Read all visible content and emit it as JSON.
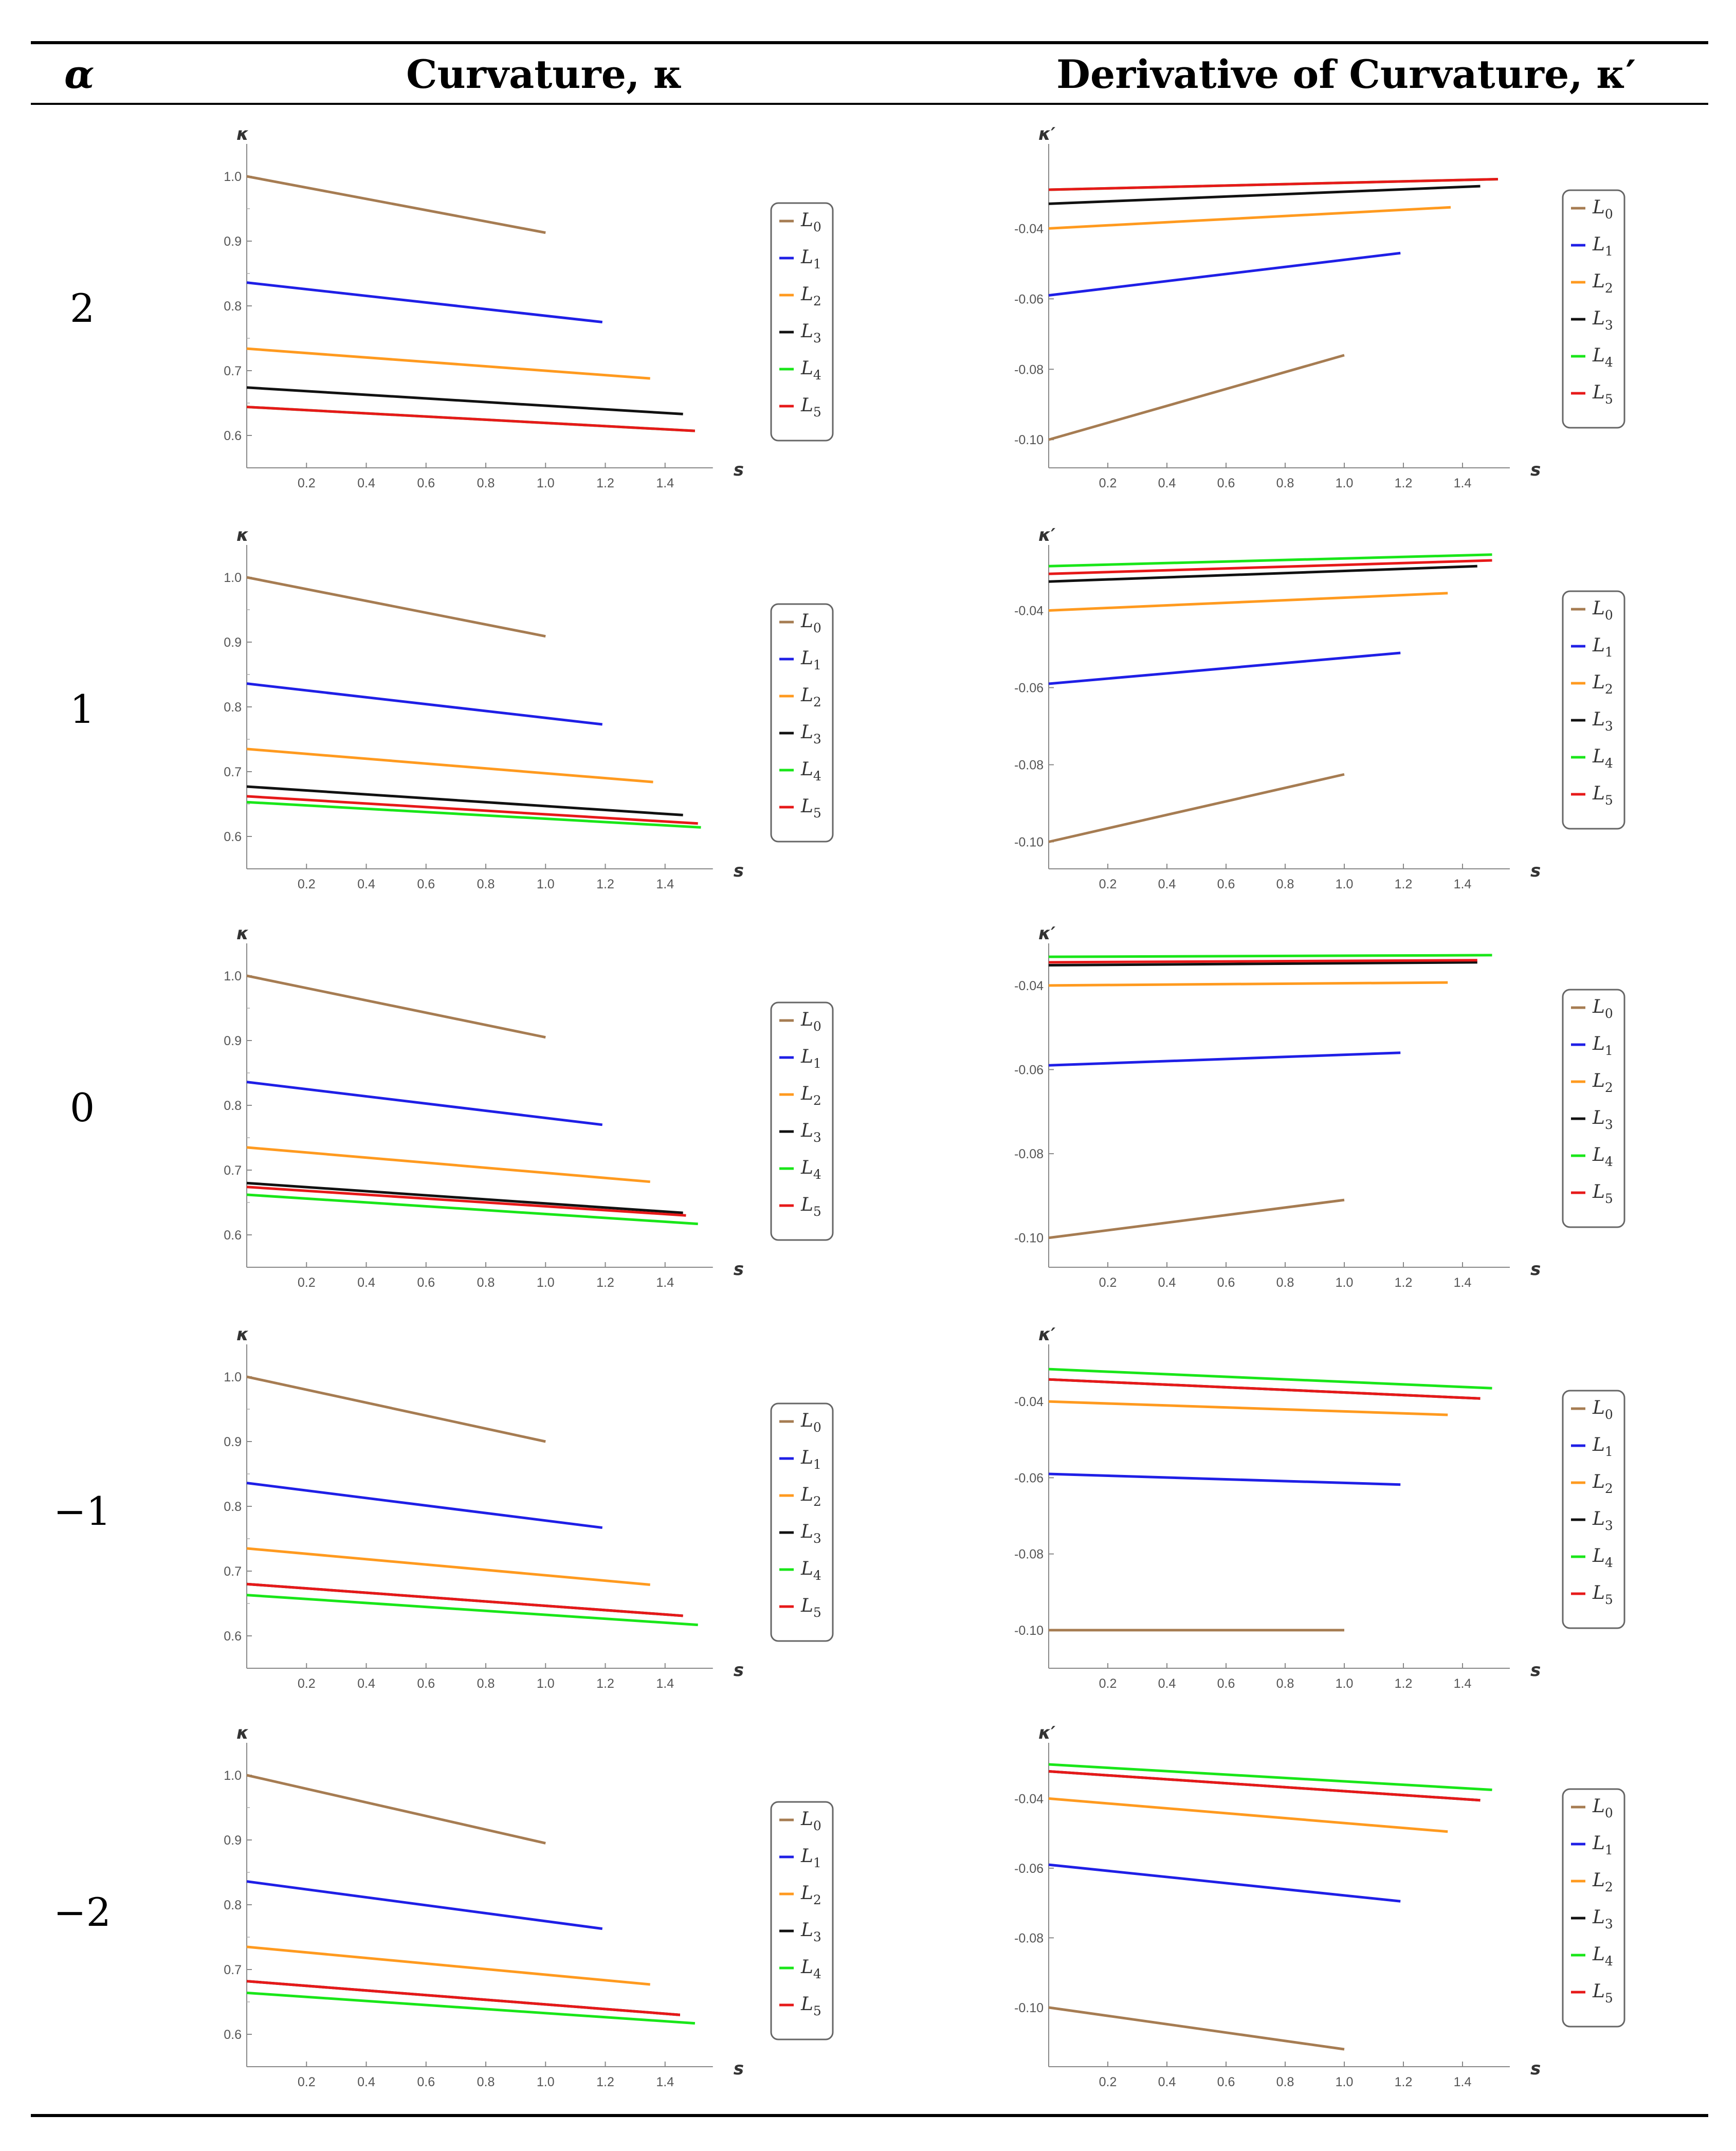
{
  "header": {
    "alpha": "α",
    "curvature": "Curvature, κ",
    "derivative": "Derivative of Curvature, κ′"
  },
  "legend": {
    "labels": [
      "L",
      "L",
      "L",
      "L",
      "L",
      "L"
    ],
    "subscripts": [
      "0",
      "1",
      "2",
      "3",
      "4",
      "5"
    ],
    "colors": [
      "#a67c52",
      "#1f1fe6",
      "#ff9a1f",
      "#111111",
      "#19e619",
      "#e61919"
    ]
  },
  "alphas": [
    "2",
    "1",
    "0",
    "−1",
    "−2"
  ],
  "chart_data": [
    {
      "type": "line",
      "alpha": "2",
      "ylabel": "κ",
      "xlabel": "s",
      "ylim": [
        0.55,
        1.05
      ],
      "xlim": [
        0,
        1.6
      ],
      "yticks": [
        "1.0",
        "0.9",
        "0.8",
        "0.7",
        "0.6"
      ],
      "xticks": [
        "0.2",
        "0.4",
        "0.6",
        "0.8",
        "1.0",
        "1.2",
        "1.4"
      ],
      "series": [
        {
          "name": "L0",
          "x": [
            0,
            1.0
          ],
          "y": [
            1.0,
            0.913
          ]
        },
        {
          "name": "L1",
          "x": [
            0,
            1.19
          ],
          "y": [
            0.836,
            0.775
          ]
        },
        {
          "name": "L2",
          "x": [
            0,
            1.35
          ],
          "y": [
            0.734,
            0.688
          ]
        },
        {
          "name": "L3",
          "x": [
            0,
            1.46
          ],
          "y": [
            0.674,
            0.633
          ]
        },
        {
          "name": "L4",
          "x": [
            0,
            1.5
          ],
          "y": [
            0.644,
            0.607
          ]
        },
        {
          "name": "L5",
          "x": [
            0,
            1.5
          ],
          "y": [
            0.644,
            0.607
          ]
        }
      ]
    },
    {
      "type": "line",
      "alpha": "2",
      "ylabel": "κ′",
      "xlabel": "s",
      "ylim": [
        -0.108,
        -0.016
      ],
      "xlim": [
        0,
        1.6
      ],
      "yticks": [
        "-0.04",
        "-0.06",
        "-0.08",
        "-0.10"
      ],
      "xticks": [
        "0.2",
        "0.4",
        "0.6",
        "0.8",
        "1.0",
        "1.2",
        "1.4"
      ],
      "series": [
        {
          "name": "L0",
          "x": [
            0,
            1.0
          ],
          "y": [
            -0.1,
            -0.076
          ]
        },
        {
          "name": "L1",
          "x": [
            0,
            1.19
          ],
          "y": [
            -0.059,
            -0.047
          ]
        },
        {
          "name": "L2",
          "x": [
            0,
            1.36
          ],
          "y": [
            -0.04,
            -0.034
          ]
        },
        {
          "name": "L3",
          "x": [
            0,
            1.46
          ],
          "y": [
            -0.033,
            -0.028
          ]
        },
        {
          "name": "L4",
          "x": [
            0,
            1.52
          ],
          "y": [
            -0.029,
            -0.026
          ]
        },
        {
          "name": "L5",
          "x": [
            0,
            1.52
          ],
          "y": [
            -0.029,
            -0.026
          ]
        }
      ]
    },
    {
      "type": "line",
      "alpha": "1",
      "ylabel": "κ",
      "xlabel": "s",
      "ylim": [
        0.55,
        1.05
      ],
      "xlim": [
        0,
        1.6
      ],
      "yticks": [
        "1.0",
        "0.9",
        "0.8",
        "0.7",
        "0.6"
      ],
      "xticks": [
        "0.2",
        "0.4",
        "0.6",
        "0.8",
        "1.0",
        "1.2",
        "1.4"
      ],
      "series": [
        {
          "name": "L0",
          "x": [
            0,
            1.0
          ],
          "y": [
            1.0,
            0.909
          ]
        },
        {
          "name": "L1",
          "x": [
            0,
            1.19
          ],
          "y": [
            0.836,
            0.773
          ]
        },
        {
          "name": "L2",
          "x": [
            0,
            1.36
          ],
          "y": [
            0.735,
            0.684
          ]
        },
        {
          "name": "L3",
          "x": [
            0,
            1.46
          ],
          "y": [
            0.677,
            0.633
          ]
        },
        {
          "name": "L4",
          "x": [
            0,
            1.52
          ],
          "y": [
            0.653,
            0.614
          ]
        },
        {
          "name": "L5",
          "x": [
            0,
            1.51
          ],
          "y": [
            0.662,
            0.62
          ]
        }
      ]
    },
    {
      "type": "line",
      "alpha": "1",
      "ylabel": "κ′",
      "xlabel": "s",
      "ylim": [
        -0.107,
        -0.023
      ],
      "xlim": [
        0,
        1.6
      ],
      "yticks": [
        "-0.04",
        "-0.06",
        "-0.08",
        "-0.10"
      ],
      "xticks": [
        "0.2",
        "0.4",
        "0.6",
        "0.8",
        "1.0",
        "1.2",
        "1.4"
      ],
      "series": [
        {
          "name": "L0",
          "x": [
            0,
            1.0
          ],
          "y": [
            -0.1,
            -0.0825
          ]
        },
        {
          "name": "L1",
          "x": [
            0,
            1.19
          ],
          "y": [
            -0.059,
            -0.051
          ]
        },
        {
          "name": "L2",
          "x": [
            0,
            1.35
          ],
          "y": [
            -0.04,
            -0.0355
          ]
        },
        {
          "name": "L3",
          "x": [
            0,
            1.45
          ],
          "y": [
            -0.0325,
            -0.0285
          ]
        },
        {
          "name": "L4",
          "x": [
            0,
            1.5
          ],
          "y": [
            -0.0285,
            -0.0255
          ]
        },
        {
          "name": "L5",
          "x": [
            0,
            1.5
          ],
          "y": [
            -0.0305,
            -0.027
          ]
        }
      ]
    },
    {
      "type": "line",
      "alpha": "0",
      "ylabel": "κ",
      "xlabel": "s",
      "ylim": [
        0.55,
        1.05
      ],
      "xlim": [
        0,
        1.6
      ],
      "yticks": [
        "1.0",
        "0.9",
        "0.8",
        "0.7",
        "0.6"
      ],
      "xticks": [
        "0.2",
        "0.4",
        "0.6",
        "0.8",
        "1.0",
        "1.2",
        "1.4"
      ],
      "series": [
        {
          "name": "L0",
          "x": [
            0,
            1.0
          ],
          "y": [
            1.0,
            0.905
          ]
        },
        {
          "name": "L1",
          "x": [
            0,
            1.19
          ],
          "y": [
            0.836,
            0.77
          ]
        },
        {
          "name": "L2",
          "x": [
            0,
            1.35
          ],
          "y": [
            0.735,
            0.682
          ]
        },
        {
          "name": "L3",
          "x": [
            0,
            1.46
          ],
          "y": [
            0.68,
            0.634
          ]
        },
        {
          "name": "L4",
          "x": [
            0,
            1.51
          ],
          "y": [
            0.662,
            0.617
          ]
        },
        {
          "name": "L5",
          "x": [
            0,
            1.47
          ],
          "y": [
            0.674,
            0.63
          ]
        }
      ]
    },
    {
      "type": "line",
      "alpha": "0",
      "ylabel": "κ′",
      "xlabel": "s",
      "ylim": [
        -0.107,
        -0.03
      ],
      "xlim": [
        0,
        1.6
      ],
      "yticks": [
        "-0.04",
        "-0.06",
        "-0.08",
        "-0.10"
      ],
      "xticks": [
        "0.2",
        "0.4",
        "0.6",
        "0.8",
        "1.0",
        "1.2",
        "1.4"
      ],
      "series": [
        {
          "name": "L0",
          "x": [
            0,
            1.0
          ],
          "y": [
            -0.1,
            -0.091
          ]
        },
        {
          "name": "L1",
          "x": [
            0,
            1.19
          ],
          "y": [
            -0.059,
            -0.056
          ]
        },
        {
          "name": "L2",
          "x": [
            0,
            1.35
          ],
          "y": [
            -0.04,
            -0.0393
          ]
        },
        {
          "name": "L3",
          "x": [
            0,
            1.45
          ],
          "y": [
            -0.0352,
            -0.0345
          ]
        },
        {
          "name": "L4",
          "x": [
            0,
            1.5
          ],
          "y": [
            -0.0332,
            -0.0328
          ]
        },
        {
          "name": "L5",
          "x": [
            0,
            1.45
          ],
          "y": [
            -0.0345,
            -0.034
          ]
        }
      ]
    },
    {
      "type": "line",
      "alpha": "−1",
      "ylabel": "κ",
      "xlabel": "s",
      "ylim": [
        0.55,
        1.05
      ],
      "xlim": [
        0,
        1.6
      ],
      "yticks": [
        "1.0",
        "0.9",
        "0.8",
        "0.7",
        "0.6"
      ],
      "xticks": [
        "0.2",
        "0.4",
        "0.6",
        "0.8",
        "1.0",
        "1.2",
        "1.4"
      ],
      "series": [
        {
          "name": "L0",
          "x": [
            0,
            1.0
          ],
          "y": [
            1.0,
            0.9
          ]
        },
        {
          "name": "L1",
          "x": [
            0,
            1.19
          ],
          "y": [
            0.836,
            0.767
          ]
        },
        {
          "name": "L2",
          "x": [
            0,
            1.35
          ],
          "y": [
            0.735,
            0.679
          ]
        },
        {
          "name": "L3",
          "x": [
            0,
            1.46
          ],
          "y": [
            0.68,
            0.631
          ]
        },
        {
          "name": "L4",
          "x": [
            0,
            1.51
          ],
          "y": [
            0.663,
            0.617
          ]
        },
        {
          "name": "L5",
          "x": [
            0,
            1.46
          ],
          "y": [
            0.68,
            0.631
          ]
        }
      ]
    },
    {
      "type": "line",
      "alpha": "−1",
      "ylabel": "κ′",
      "xlabel": "s",
      "ylim": [
        -0.11,
        -0.025
      ],
      "xlim": [
        0,
        1.6
      ],
      "yticks": [
        "-0.04",
        "-0.06",
        "-0.08",
        "-0.10"
      ],
      "xticks": [
        "0.2",
        "0.4",
        "0.6",
        "0.8",
        "1.0",
        "1.2",
        "1.4"
      ],
      "series": [
        {
          "name": "L0",
          "x": [
            0,
            1.0
          ],
          "y": [
            -0.1,
            -0.1
          ]
        },
        {
          "name": "L1",
          "x": [
            0,
            1.19
          ],
          "y": [
            -0.059,
            -0.0618
          ]
        },
        {
          "name": "L2",
          "x": [
            0,
            1.35
          ],
          "y": [
            -0.04,
            -0.0435
          ]
        },
        {
          "name": "L3",
          "x": [
            0,
            1.46
          ],
          "y": [
            -0.0342,
            -0.0392
          ]
        },
        {
          "name": "L4",
          "x": [
            0,
            1.5
          ],
          "y": [
            -0.0315,
            -0.0365
          ]
        },
        {
          "name": "L5",
          "x": [
            0,
            1.46
          ],
          "y": [
            -0.0342,
            -0.0392
          ]
        }
      ]
    },
    {
      "type": "line",
      "alpha": "−2",
      "ylabel": "κ",
      "xlabel": "s",
      "ylim": [
        0.55,
        1.05
      ],
      "xlim": [
        0,
        1.6
      ],
      "yticks": [
        "1.0",
        "0.9",
        "0.8",
        "0.7",
        "0.6"
      ],
      "xticks": [
        "0.2",
        "0.4",
        "0.6",
        "0.8",
        "1.0",
        "1.2",
        "1.4"
      ],
      "series": [
        {
          "name": "L0",
          "x": [
            0,
            1.0
          ],
          "y": [
            1.0,
            0.895
          ]
        },
        {
          "name": "L1",
          "x": [
            0,
            1.19
          ],
          "y": [
            0.836,
            0.763
          ]
        },
        {
          "name": "L2",
          "x": [
            0,
            1.35
          ],
          "y": [
            0.735,
            0.677
          ]
        },
        {
          "name": "L3",
          "x": [
            0,
            1.45
          ],
          "y": [
            0.682,
            0.63
          ]
        },
        {
          "name": "L4",
          "x": [
            0,
            1.5
          ],
          "y": [
            0.664,
            0.617
          ]
        },
        {
          "name": "L5",
          "x": [
            0,
            1.45
          ],
          "y": [
            0.682,
            0.63
          ]
        }
      ]
    },
    {
      "type": "line",
      "alpha": "−2",
      "ylabel": "κ′",
      "xlabel": "s",
      "ylim": [
        -0.117,
        -0.024
      ],
      "xlim": [
        0,
        1.6
      ],
      "yticks": [
        "-0.04",
        "-0.06",
        "-0.08",
        "-0.10"
      ],
      "xticks": [
        "0.2",
        "0.4",
        "0.6",
        "0.8",
        "1.0",
        "1.2",
        "1.4"
      ],
      "series": [
        {
          "name": "L0",
          "x": [
            0,
            1.0
          ],
          "y": [
            -0.1,
            -0.112
          ]
        },
        {
          "name": "L1",
          "x": [
            0,
            1.19
          ],
          "y": [
            -0.059,
            -0.0695
          ]
        },
        {
          "name": "L2",
          "x": [
            0,
            1.35
          ],
          "y": [
            -0.04,
            -0.0495
          ]
        },
        {
          "name": "L3",
          "x": [
            0,
            1.46
          ],
          "y": [
            -0.0322,
            -0.0405
          ]
        },
        {
          "name": "L4",
          "x": [
            0,
            1.5
          ],
          "y": [
            -0.0302,
            -0.0375
          ]
        },
        {
          "name": "L5",
          "x": [
            0,
            1.46
          ],
          "y": [
            -0.0322,
            -0.0405
          ]
        }
      ]
    }
  ]
}
